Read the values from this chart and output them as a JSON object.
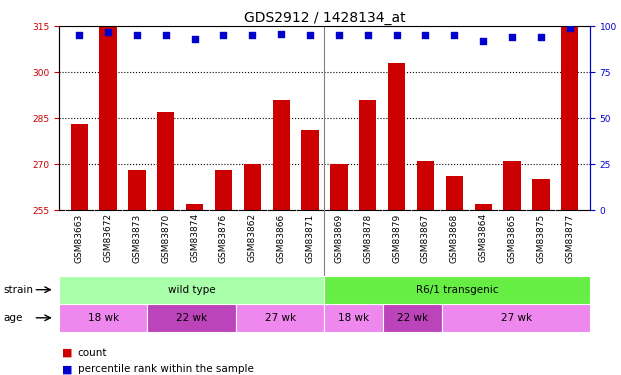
{
  "title": "GDS2912 / 1428134_at",
  "samples": [
    "GSM83663",
    "GSM83672",
    "GSM83873",
    "GSM83870",
    "GSM83874",
    "GSM83876",
    "GSM83862",
    "GSM83866",
    "GSM83871",
    "GSM83869",
    "GSM83878",
    "GSM83879",
    "GSM83867",
    "GSM83868",
    "GSM83864",
    "GSM83865",
    "GSM83875",
    "GSM83877"
  ],
  "counts": [
    283,
    323,
    268,
    287,
    257,
    268,
    270,
    291,
    281,
    270,
    291,
    303,
    271,
    266,
    257,
    271,
    265,
    315
  ],
  "percentiles": [
    95,
    97,
    95,
    95,
    93,
    95,
    95,
    96,
    95,
    95,
    95,
    95,
    95,
    95,
    92,
    94,
    94,
    99
  ],
  "ylim_left": [
    255,
    315
  ],
  "ylim_right": [
    0,
    100
  ],
  "yticks_left": [
    255,
    270,
    285,
    300,
    315
  ],
  "yticks_right": [
    0,
    25,
    50,
    75,
    100
  ],
  "bar_color": "#cc0000",
  "dot_color": "#0000cc",
  "bg_color": "#ffffff",
  "strain_groups": [
    {
      "label": "wild type",
      "start": 0,
      "end": 9,
      "color": "#aaffaa"
    },
    {
      "label": "R6/1 transgenic",
      "start": 9,
      "end": 18,
      "color": "#66ee44"
    }
  ],
  "age_groups": [
    {
      "label": "18 wk",
      "start": 0,
      "end": 3,
      "color": "#ee88ee"
    },
    {
      "label": "22 wk",
      "start": 3,
      "end": 6,
      "color": "#bb44bb"
    },
    {
      "label": "27 wk",
      "start": 6,
      "end": 9,
      "color": "#ee88ee"
    },
    {
      "label": "18 wk",
      "start": 9,
      "end": 11,
      "color": "#ee88ee"
    },
    {
      "label": "22 wk",
      "start": 11,
      "end": 13,
      "color": "#bb44bb"
    },
    {
      "label": "27 wk",
      "start": 13,
      "end": 18,
      "color": "#ee88ee"
    }
  ],
  "left_axis_color": "#cc0000",
  "right_axis_color": "#0000cc",
  "xtick_bg": "#cccccc",
  "title_fontsize": 10,
  "tick_fontsize": 6.5,
  "annot_fontsize": 7.5
}
